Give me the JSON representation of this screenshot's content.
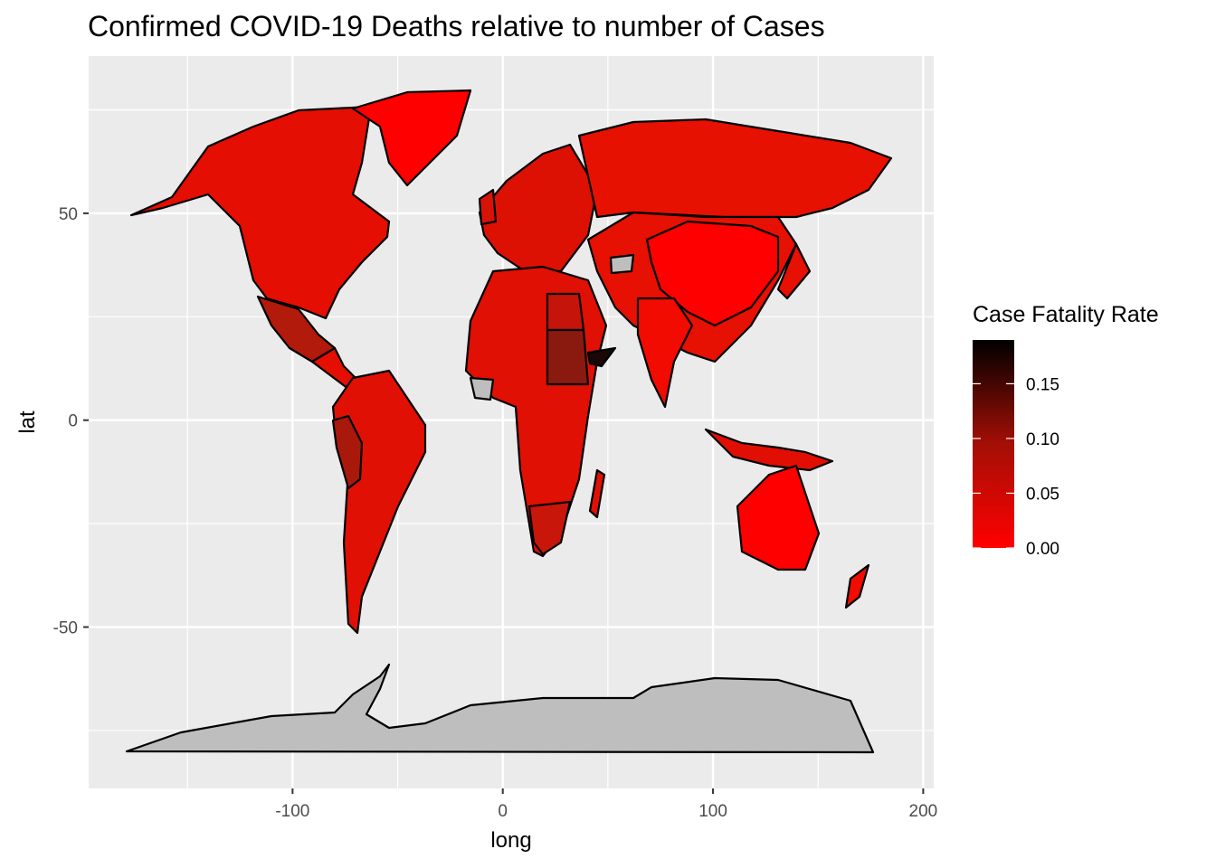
{
  "title": "Confirmed COVID-19 Deaths relative to number of Cases",
  "chart_data": {
    "type": "choropleth-map",
    "xlabel": "long",
    "ylabel": "lat",
    "xlim": [
      -197,
      205
    ],
    "ylim": [
      -89,
      88
    ],
    "x_ticks": [
      -100,
      0,
      100,
      200
    ],
    "x_tick_labels": [
      "-100",
      "0",
      "100",
      "200"
    ],
    "y_ticks": [
      -50,
      0,
      50
    ],
    "y_tick_labels": [
      "-50",
      "0",
      "50"
    ],
    "grid": true,
    "panel_background": "#ebebeb",
    "legend": {
      "title": "Case Fatality Rate",
      "position": "right",
      "range": [
        0,
        0.19
      ],
      "breaks": [
        0.15,
        0.1,
        0.05,
        0.0
      ],
      "break_labels": [
        "0.15",
        "0.10",
        "0.05",
        "0.00"
      ],
      "low_color": "#ff0000",
      "high_color": "#000000"
    },
    "missing_color": "#bebebe",
    "regions": [
      {
        "name": "North America",
        "value": 0.03
      },
      {
        "name": "Mexico",
        "value": 0.09
      },
      {
        "name": "Central America",
        "value": 0.03
      },
      {
        "name": "South America",
        "value": 0.04
      },
      {
        "name": "Peru",
        "value": 0.08
      },
      {
        "name": "Greenland",
        "value": 0.0
      },
      {
        "name": "Europe",
        "value": 0.04
      },
      {
        "name": "Russia",
        "value": 0.02
      },
      {
        "name": "Asia",
        "value": 0.02
      },
      {
        "name": "China",
        "value": 0.0
      },
      {
        "name": "India",
        "value": 0.01
      },
      {
        "name": "Africa",
        "value": 0.03
      },
      {
        "name": "Egypt",
        "value": 0.06
      },
      {
        "name": "Sudan",
        "value": 0.09
      },
      {
        "name": "Yemen",
        "value": 0.19
      },
      {
        "name": "South Africa",
        "value": 0.05
      },
      {
        "name": "Australia",
        "value": 0.0
      },
      {
        "name": "Indonesia",
        "value": 0.03
      },
      {
        "name": "New Zealand",
        "value": 0.01
      },
      {
        "name": "Antarctica",
        "value": null
      }
    ]
  }
}
